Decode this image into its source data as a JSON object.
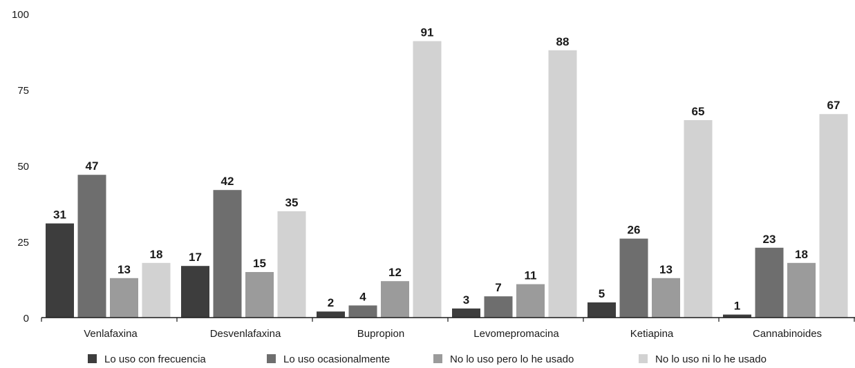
{
  "chart_data": {
    "type": "bar",
    "categories": [
      "Venlafaxina",
      "Desvenlafaxina",
      "Bupropion",
      "Levomepromacina",
      "Ketiapina",
      "Cannabinoides"
    ],
    "series": [
      {
        "name": "Lo uso con frecuencia",
        "color": "#3d3d3d",
        "values": [
          31,
          17,
          2,
          3,
          5,
          1
        ]
      },
      {
        "name": "Lo uso ocasionalmente",
        "color": "#6e6e6e",
        "values": [
          47,
          42,
          4,
          7,
          26,
          23
        ]
      },
      {
        "name": "No lo uso pero lo he usado",
        "color": "#9b9b9b",
        "values": [
          13,
          15,
          12,
          11,
          13,
          18
        ]
      },
      {
        "name": "No lo uso ni lo he usado",
        "color": "#d2d2d2",
        "values": [
          18,
          35,
          91,
          88,
          65,
          67
        ]
      }
    ],
    "yticks": [
      "0",
      "25",
      "50",
      "75",
      "100"
    ],
    "ylim": [
      0,
      100
    ],
    "grid": false,
    "legend_position": "bottom"
  }
}
